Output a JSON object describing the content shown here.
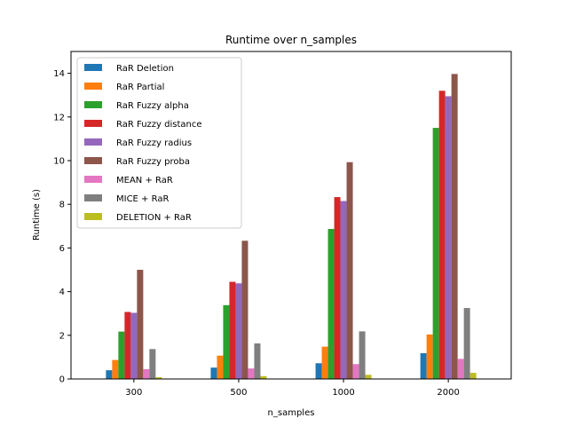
{
  "chart_data": {
    "type": "bar",
    "title": "Runtime over n_samples",
    "xlabel": "n_samples",
    "ylabel": "Runtime (s)",
    "categories": [
      "300",
      "500",
      "1000",
      "2000"
    ],
    "ylim": [
      0,
      15
    ],
    "yticks": [
      0,
      2,
      4,
      6,
      8,
      10,
      12,
      14
    ],
    "grid": false,
    "legend_position": "top-left",
    "series": [
      {
        "name": "RaR Deletion",
        "color": "#1f77b4",
        "values": [
          0.4,
          0.52,
          0.72,
          1.18
        ]
      },
      {
        "name": "RaR Partial",
        "color": "#ff7f0e",
        "values": [
          0.87,
          1.07,
          1.48,
          2.04
        ]
      },
      {
        "name": "RaR Fuzzy alpha",
        "color": "#2ca02c",
        "values": [
          2.17,
          3.38,
          6.87,
          11.5
        ]
      },
      {
        "name": "RaR Fuzzy distance",
        "color": "#d62728",
        "values": [
          3.07,
          4.45,
          8.33,
          13.2
        ]
      },
      {
        "name": "RaR Fuzzy radius",
        "color": "#9467bd",
        "values": [
          3.03,
          4.38,
          8.15,
          12.95
        ]
      },
      {
        "name": "RaR Fuzzy proba",
        "color": "#8c564b",
        "values": [
          5.0,
          6.33,
          9.93,
          13.97
        ]
      },
      {
        "name": "MEAN + RaR",
        "color": "#e377c2",
        "values": [
          0.45,
          0.48,
          0.68,
          0.92
        ]
      },
      {
        "name": "MICE + RaR",
        "color": "#7f7f7f",
        "values": [
          1.37,
          1.63,
          2.18,
          3.25
        ]
      },
      {
        "name": "DELETION + RaR",
        "color": "#bcbd22",
        "values": [
          0.08,
          0.13,
          0.19,
          0.28
        ]
      }
    ]
  }
}
